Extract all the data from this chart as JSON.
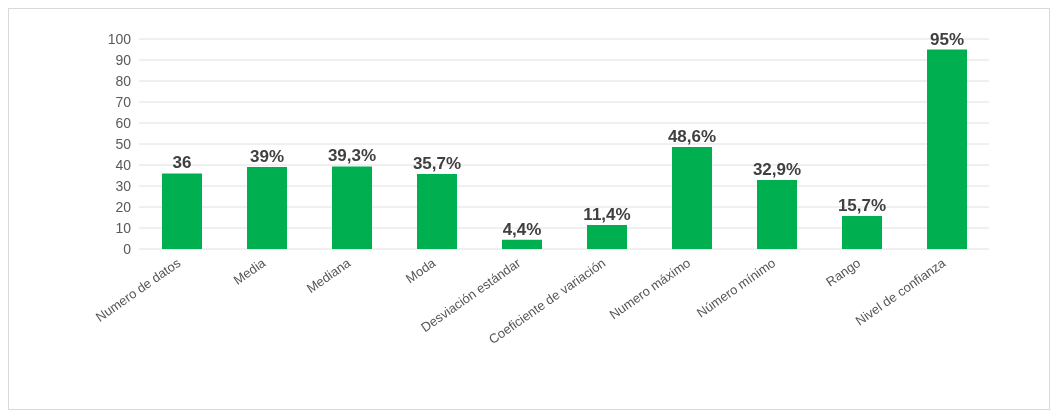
{
  "chart_data": {
    "type": "bar",
    "categories": [
      "Numero de datos",
      "Media",
      "Mediana",
      "Moda",
      "Desviación estándar",
      "Coeficiente de variación",
      "Numero máximo",
      "Número mínimo",
      "Rango",
      "Nivel de confianza"
    ],
    "values": [
      36,
      39,
      39.3,
      35.7,
      4.4,
      11.4,
      48.6,
      32.9,
      15.7,
      95
    ],
    "value_labels": [
      "36",
      "39%",
      "39,3%",
      "35,7%",
      "4,4%",
      "11,4%",
      "48,6%",
      "32,9%",
      "15,7%",
      "95%"
    ],
    "color": "#00b050",
    "ylim": [
      0,
      100
    ],
    "yticks": [
      0,
      10,
      20,
      30,
      40,
      50,
      60,
      70,
      80,
      90,
      100
    ],
    "grid": "y"
  }
}
